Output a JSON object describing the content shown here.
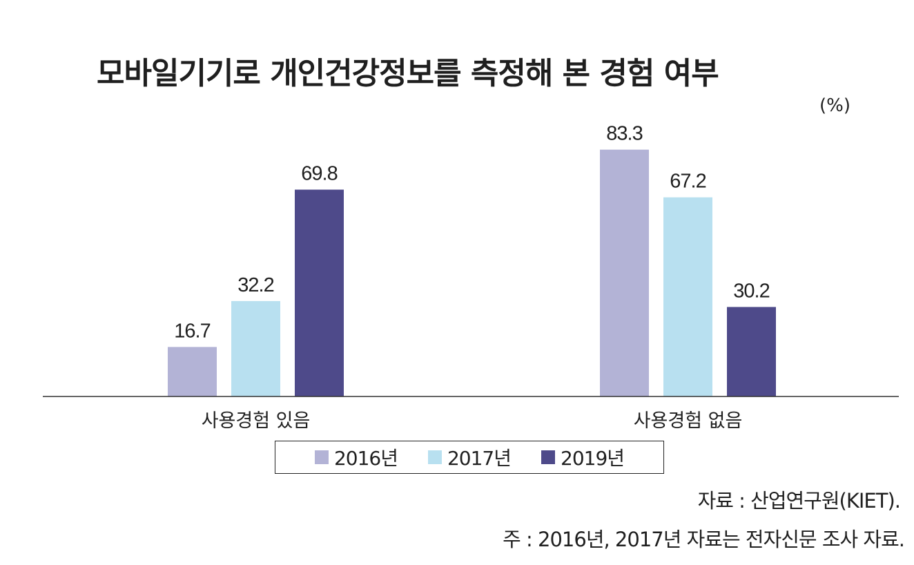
{
  "chart_data": {
    "type": "bar",
    "title": "모바일기기로 개인건강정보를 측정해 본 경험 여부",
    "unit": "(%)",
    "categories": [
      "사용경험 있음",
      "사용경험 없음"
    ],
    "series": [
      {
        "name": "2016년",
        "color": "#b3b3d6",
        "values": [
          16.7,
          83.3
        ]
      },
      {
        "name": "2017년",
        "color": "#b8e0f0",
        "values": [
          32.2,
          67.2
        ]
      },
      {
        "name": "2019년",
        "color": "#4e4a8a",
        "values": [
          69.8,
          30.2
        ]
      }
    ],
    "ylim": [
      0,
      100
    ],
    "xlabel": "",
    "ylabel": "",
    "grid": false,
    "legend_position": "bottom"
  },
  "footer": {
    "source": "자료 : 산업연구원(KIET).",
    "note": "주 : 2016년, 2017년 자료는 전자신문 조사 자료."
  }
}
